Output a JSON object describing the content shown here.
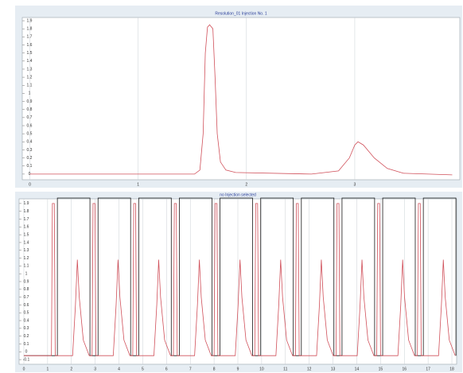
{
  "chart_data": [
    {
      "type": "line",
      "title": "Resolution_01 Injection No. 1",
      "xlim": [
        -0.07,
        3.97
      ],
      "ylim": [
        -0.07,
        1.94
      ],
      "xticks": [
        0,
        1,
        2,
        3
      ],
      "yticks": [
        0,
        0.1,
        0.2,
        0.3,
        0.4,
        0.5,
        0.6,
        0.7,
        0.8,
        0.9,
        1,
        1.1,
        1.2,
        1.3,
        1.4,
        1.5,
        1.6,
        1.7,
        1.8,
        1.9
      ],
      "grid": "x",
      "series": [
        {
          "color": "#d0505a",
          "x": [
            0,
            1.52,
            1.57,
            1.6,
            1.62,
            1.64,
            1.66,
            1.69,
            1.71,
            1.73,
            1.76,
            1.81,
            1.9,
            2.6,
            2.85,
            2.95,
            3.0,
            3.03,
            3.08,
            3.18,
            3.3,
            3.45,
            3.9
          ],
          "values": [
            0,
            0,
            0.05,
            0.5,
            1.5,
            1.82,
            1.85,
            1.8,
            1.2,
            0.5,
            0.15,
            0.05,
            0.02,
            0,
            0.04,
            0.2,
            0.36,
            0.4,
            0.36,
            0.2,
            0.07,
            0.01,
            -0.01
          ]
        }
      ]
    },
    {
      "type": "line",
      "title": "no Injection selected",
      "xlim": [
        -0.2,
        18.2
      ],
      "ylim": [
        -0.16,
        1.96
      ],
      "xticks": [
        0,
        1,
        2,
        3,
        4,
        5,
        6,
        7,
        8,
        9,
        10,
        11,
        12,
        13,
        14,
        15,
        16,
        17,
        18
      ],
      "yticks": [
        -0.1,
        0,
        0.1,
        0.2,
        0.3,
        0.4,
        0.5,
        0.6,
        0.7,
        0.8,
        0.9,
        1,
        1.1,
        1.2,
        1.3,
        1.4,
        1.5,
        1.6,
        1.7,
        1.8,
        1.9
      ],
      "grid": "x",
      "series": [
        {
          "color": "#1a1a1a",
          "x": [
            0,
            1.41,
            1.41,
            2.78,
            2.78,
            3.12,
            3.12,
            4.49,
            4.49,
            4.83,
            4.83,
            6.2,
            6.2,
            6.54,
            6.54,
            7.91,
            7.91,
            8.25,
            8.25,
            9.62,
            9.62,
            9.96,
            9.96,
            11.33,
            11.33,
            11.67,
            11.67,
            13.04,
            13.04,
            13.38,
            13.38,
            14.75,
            14.75,
            15.09,
            15.09,
            16.46,
            16.46,
            16.8,
            16.8,
            18.17,
            18.17
          ],
          "values": [
            -0.05,
            -0.05,
            1.97,
            1.97,
            -0.05,
            -0.05,
            1.97,
            1.97,
            -0.05,
            -0.05,
            1.97,
            1.97,
            -0.05,
            -0.05,
            1.97,
            1.97,
            -0.05,
            -0.05,
            1.97,
            1.97,
            -0.05,
            -0.05,
            1.97,
            1.97,
            -0.05,
            -0.05,
            1.97,
            1.97,
            -0.05,
            -0.05,
            1.97,
            1.97,
            -0.05,
            -0.05,
            1.97,
            1.97,
            -0.05,
            -0.05,
            1.97,
            1.97,
            -0.05
          ]
        },
        {
          "color": "#d0505a",
          "x": [
            0,
            1.16,
            1.2,
            1.28,
            1.32,
            2.05,
            2.17,
            2.25,
            2.33,
            2.5,
            2.75,
            2.87,
            2.91,
            2.99,
            3.03,
            3.76,
            3.88,
            3.96,
            4.04,
            4.21,
            4.46,
            4.58,
            4.62,
            4.7,
            4.74,
            5.47,
            5.59,
            5.67,
            5.75,
            5.92,
            6.17,
            6.29,
            6.33,
            6.41,
            6.45,
            7.18,
            7.3,
            7.38,
            7.46,
            7.63,
            7.88,
            8,
            8.04,
            8.12,
            8.16,
            8.89,
            9.01,
            9.09,
            9.17,
            9.34,
            9.59,
            9.71,
            9.75,
            9.83,
            9.87,
            10.6,
            10.72,
            10.8,
            10.88,
            11.05,
            11.3,
            11.42,
            11.46,
            11.54,
            11.58,
            12.31,
            12.43,
            12.51,
            12.59,
            12.76,
            13.01,
            13.13,
            13.17,
            13.25,
            13.29,
            14.02,
            14.14,
            14.22,
            14.3,
            14.47,
            14.72,
            14.84,
            14.88,
            14.96,
            15,
            15.73,
            15.85,
            15.93,
            16.01,
            16.18,
            16.43,
            16.55,
            16.59,
            16.67,
            16.71,
            17.44,
            17.56,
            17.64,
            17.72,
            17.89,
            18.14
          ],
          "values": [
            -0.05,
            -0.05,
            1.9,
            1.9,
            -0.05,
            -0.05,
            0.6,
            1.18,
            0.7,
            0.15,
            -0.05,
            -0.05,
            1.9,
            1.9,
            -0.05,
            -0.05,
            0.6,
            1.18,
            0.7,
            0.15,
            -0.05,
            -0.05,
            1.9,
            1.9,
            -0.05,
            -0.05,
            0.6,
            1.18,
            0.7,
            0.15,
            -0.05,
            -0.05,
            1.9,
            1.9,
            -0.05,
            -0.05,
            0.6,
            1.18,
            0.7,
            0.15,
            -0.05,
            -0.05,
            1.9,
            1.9,
            -0.05,
            -0.05,
            0.6,
            1.18,
            0.7,
            0.15,
            -0.05,
            -0.05,
            1.9,
            1.9,
            -0.05,
            -0.05,
            0.6,
            1.18,
            0.7,
            0.15,
            -0.05,
            -0.05,
            1.9,
            1.9,
            -0.05,
            -0.05,
            0.6,
            1.18,
            0.7,
            0.15,
            -0.05,
            -0.05,
            1.9,
            1.9,
            -0.05,
            -0.05,
            0.6,
            1.18,
            0.7,
            0.15,
            -0.05,
            -0.05,
            1.9,
            1.9,
            -0.05,
            -0.05,
            0.6,
            1.18,
            0.7,
            0.15,
            -0.05,
            -0.05,
            1.9,
            1.9,
            -0.05,
            -0.05,
            0.6,
            1.18,
            0.7,
            0.15,
            -0.05
          ]
        }
      ]
    }
  ]
}
